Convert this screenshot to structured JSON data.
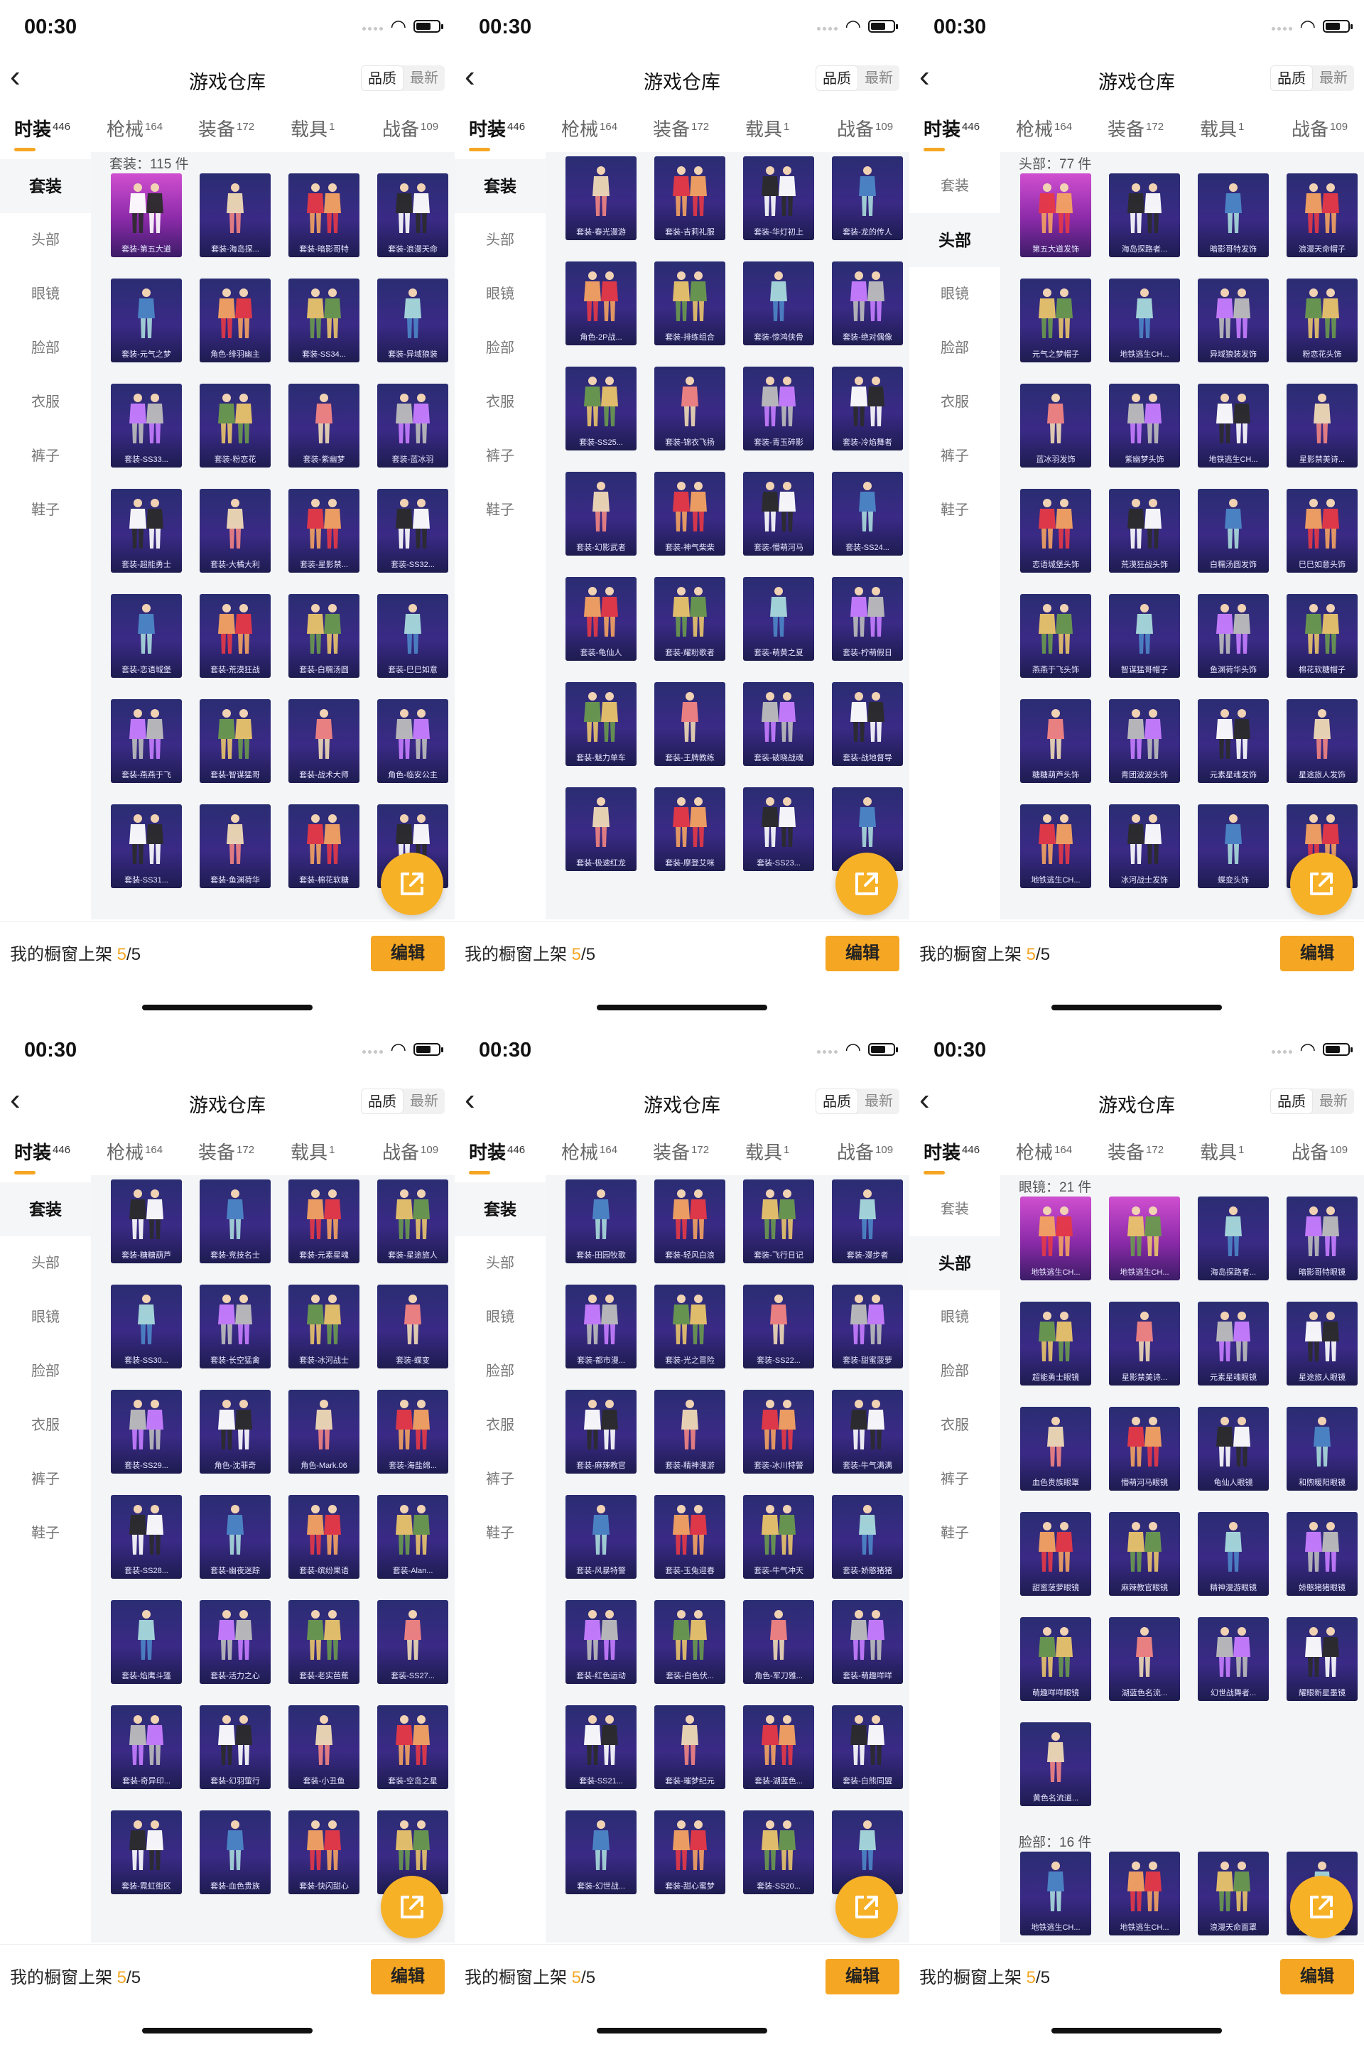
{
  "status": {
    "time": "00:30"
  },
  "nav": {
    "title": "游戏仓库",
    "sort_quality": "品质",
    "sort_newest": "最新"
  },
  "tabs": [
    {
      "label": "时装",
      "count": "446"
    },
    {
      "label": "枪械",
      "count": "164"
    },
    {
      "label": "装备",
      "count": "172"
    },
    {
      "label": "载具",
      "count": "1"
    },
    {
      "label": "战备",
      "count": "109"
    }
  ],
  "sidebar": [
    "套装",
    "头部",
    "眼镜",
    "脸部",
    "衣服",
    "裤子",
    "鞋子"
  ],
  "footer": {
    "label": "我的橱窗上架",
    "current": "5",
    "total": "/5",
    "edit": "编辑"
  },
  "colors": {
    "accent": "#f5a623",
    "card_normal": "#2f2b7a",
    "card_highlight": "#b54ad0"
  },
  "icons": {
    "back": "back-chevron-icon",
    "share": "share-arrow-icon"
  },
  "screens": [
    {
      "active_side": 0,
      "sections": [
        {
          "label": "套装：115 件",
          "items": [
            "套装-第五大道",
            "套装-海岛探...",
            "套装-暗影哥特",
            "套装-浪漫天命",
            "套装-元气之梦",
            "角色-绯羽幽主",
            "套装-SS34...",
            "套装-异域狼装",
            "套装-SS33...",
            "套装-粉恋花",
            "套装-紫幽梦",
            "套装-蓝冰羽",
            "套装-超能勇士",
            "套装-大橘大利",
            "套装-星影禁...",
            "套装-SS32...",
            "套装-恋语城堡",
            "套装-荒漠狂战",
            "套装-白糯汤圆",
            "套装-巳巳如意",
            "套装-燕燕于飞",
            "套装-智谋猛哥",
            "套装-战术大师",
            "角色-临安公主",
            "套装-SS31...",
            "套装-鱼渊荷华",
            "套装-棉花软糖",
            "套装-..."
          ]
        }
      ]
    },
    {
      "active_side": 0,
      "sections": [
        {
          "label": "",
          "items": [
            "套装-春光漫游",
            "套装-吉莉礼服",
            "套装-华灯初上",
            "套装-龙的传人",
            "角色-2P战...",
            "套装-排练组合",
            "套装-惊鸿侠骨",
            "套装-绝对偶像",
            "套装-SS25...",
            "套装-锦衣飞扬",
            "套装-青玉碎影",
            "套装-冷焰舞者",
            "套装-幻影武者",
            "套装-神气柴柴",
            "套装-懵萌河马",
            "套装-SS24...",
            "套装-龟仙人",
            "套装-耀粉歌者",
            "套装-萌黄之夏",
            "套装-柠萌假日",
            "套装-魅力单车",
            "套装-王牌教练",
            "套装-破晓战魂",
            "套装-战地督导",
            "套装-极速红龙",
            "套装-摩登艾咪",
            "套装-SS23...",
            "套装-..."
          ]
        }
      ]
    },
    {
      "active_side": 1,
      "sections": [
        {
          "label": "头部：77 件",
          "items": [
            "第五大道发饰",
            "海岛探路者...",
            "暗影哥特发饰",
            "浪漫天命帽子",
            "元气之梦帽子",
            "地铁逃生CH...",
            "异域狼装发饰",
            "粉恋花头饰",
            "蓝冰羽发饰",
            "紫幽梦头饰",
            "地铁逃生CH...",
            "星影禁美诗...",
            "恋语城堡头饰",
            "荒漠狂战头饰",
            "白糯汤圆发饰",
            "巳巳如意头饰",
            "燕燕于飞头饰",
            "智谋猛哥帽子",
            "鱼渊荷华头饰",
            "棉花软糖帽子",
            "糖糖葫芦头饰",
            "青团波波头饰",
            "元素星魂发饰",
            "星途旅人发饰",
            "地铁逃生CH...",
            "冰河战士发饰",
            "蝶变头饰",
            "海..."
          ]
        }
      ]
    },
    {
      "active_side": 0,
      "sections": [
        {
          "label": "",
          "items": [
            "套装-糖糖葫芦",
            "套装-竞技名士",
            "套装-元素星魂",
            "套装-星途旅人",
            "套装-SS30...",
            "套装-长空猛禽",
            "套装-冰河战士",
            "套装-蝶变",
            "套装-SS29...",
            "角色-沈菲奇",
            "角色-Mark.06",
            "套装-海盐绵...",
            "套装-SS28...",
            "套装-幽夜迷踪",
            "套装-缤纷果语",
            "套装-Alan...",
            "套装-焰鹰斗篷",
            "套装-活力之心",
            "套装-老实芭蕉",
            "套装-SS27...",
            "套装-奇异印...",
            "套装-幻羽萤行",
            "套装-小丑鱼",
            "套装-空岛之星",
            "套装-霓虹街区",
            "套装-血色贵族",
            "套装-快闪甜心",
            "套装-..."
          ]
        }
      ]
    },
    {
      "active_side": 0,
      "sections": [
        {
          "label": "",
          "items": [
            "套装-田园牧歌",
            "套装-轻风白浪",
            "套装-飞行日记",
            "套装-漫步者",
            "套装-都市漫...",
            "套装-光之冒险",
            "套装-SS22...",
            "套装-甜蜜菠萝",
            "套装-麻辣教官",
            "套装-精神漫游",
            "套装-冰川特警",
            "套装-牛气满满",
            "套装-风暴特警",
            "套装-玉兔迎春",
            "套装-牛气冲天",
            "套装-娇憨猪猪",
            "套装-红色运动",
            "套装-白色伏...",
            "角色-军刀雅...",
            "套装-萌趣咩咩",
            "套装-SS21...",
            "套装-璀梦纪元",
            "套装-湖蓝色...",
            "套装-白熊同盟",
            "套装-幻世战...",
            "套装-甜心蜜梦",
            "套装-SS20...",
            "套装-..."
          ]
        }
      ]
    },
    {
      "active_side": 1,
      "sections": [
        {
          "label": "眼镜：21 件",
          "items": [
            "地铁逃生CH...",
            "地铁逃生CH...",
            "海岛探路者...",
            "暗影哥特眼镜",
            "超能勇士眼镜",
            "星影禁美诗...",
            "元素星魂眼镜",
            "星途旅人眼镜",
            "血色贵族眼罩",
            "懵萌河马眼镜",
            "龟仙人眼镜",
            "和煦暖阳眼镜",
            "甜蜜菠萝眼镜",
            "麻辣教官眼镜",
            "精神漫游眼镜",
            "娇憨猪猪眼镜",
            "萌趣咩咩眼镜",
            "湖蓝色名流...",
            "幻世战舞者...",
            "耀眼新星墨镜",
            "黄色名流道..."
          ]
        },
        {
          "label": "脸部：16 件",
          "items": [
            "地铁逃生CH...",
            "地铁逃生CH...",
            "浪漫天命面罩",
            "异域狼装面罩"
          ]
        }
      ]
    }
  ]
}
